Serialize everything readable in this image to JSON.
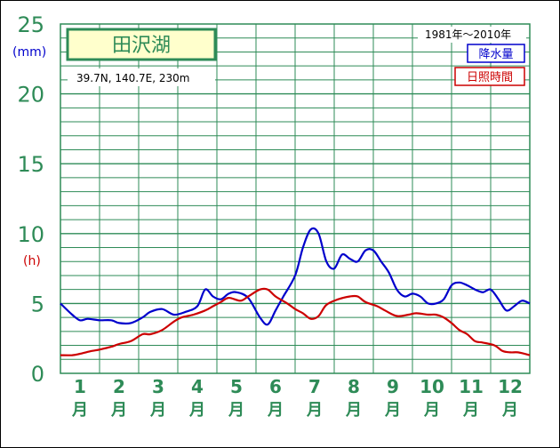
{
  "title": "田沢湖",
  "location": "39.7N,  140.7E,  230m",
  "period": "1981年〜2010年",
  "unit_precip": "(mm)",
  "unit_sunshine": "(h)",
  "legend": {
    "precip": "降水量",
    "sunshine": "日照時間"
  },
  "colors": {
    "grid": "#2e8b57",
    "precip": "#0000cc",
    "sunshine": "#cc0000",
    "title_bg": "#ffffcc"
  },
  "chart_data": {
    "type": "line",
    "categories": [
      "1",
      "2",
      "3",
      "4",
      "5",
      "6",
      "7",
      "8",
      "9",
      "10",
      "11",
      "12"
    ],
    "category_suffix": "月",
    "yticks": [
      "0",
      "5",
      "10",
      "15",
      "20",
      "25"
    ],
    "ylim": [
      0,
      25
    ],
    "grid": true,
    "legend_position": "top-right",
    "series": [
      {
        "name": "降水量",
        "color": "#0000cc",
        "x": [
          0.5,
          0.8,
          1.0,
          1.2,
          1.5,
          1.8,
          2.0,
          2.3,
          2.6,
          2.8,
          3.1,
          3.4,
          3.7,
          4.0,
          4.2,
          4.4,
          4.6,
          4.8,
          5.0,
          5.3,
          5.6,
          5.8,
          6.0,
          6.2,
          6.5,
          6.7,
          6.9,
          7.1,
          7.3,
          7.5,
          7.7,
          7.9,
          8.1,
          8.3,
          8.5,
          8.7,
          8.9,
          9.1,
          9.3,
          9.5,
          9.7,
          9.9,
          10.1,
          10.3,
          10.5,
          10.7,
          10.9,
          11.1,
          11.3,
          11.5,
          11.7,
          11.9,
          12.1,
          12.3,
          12.5
        ],
        "y": [
          5.0,
          4.2,
          3.8,
          3.9,
          3.8,
          3.8,
          3.6,
          3.6,
          4.0,
          4.4,
          4.6,
          4.2,
          4.4,
          4.8,
          6.0,
          5.5,
          5.3,
          5.7,
          5.8,
          5.4,
          4.0,
          3.5,
          4.5,
          5.5,
          7.0,
          9.0,
          10.3,
          10.0,
          8.0,
          7.5,
          8.5,
          8.2,
          8.0,
          8.8,
          8.8,
          8.0,
          7.2,
          6.0,
          5.5,
          5.7,
          5.5,
          5.0,
          5.0,
          5.3,
          6.3,
          6.5,
          6.3,
          6.0,
          5.8,
          6.0,
          5.3,
          4.5,
          4.8,
          5.2,
          5.0
        ]
      },
      {
        "name": "日照時間",
        "color": "#cc0000",
        "x": [
          0.5,
          0.8,
          1.0,
          1.3,
          1.5,
          1.8,
          2.0,
          2.3,
          2.6,
          2.8,
          3.1,
          3.4,
          3.6,
          3.9,
          4.2,
          4.4,
          4.6,
          4.8,
          5.1,
          5.3,
          5.6,
          5.8,
          6.0,
          6.3,
          6.5,
          6.7,
          6.9,
          7.1,
          7.3,
          7.6,
          7.9,
          8.1,
          8.3,
          8.6,
          8.8,
          9.1,
          9.4,
          9.6,
          9.9,
          10.1,
          10.3,
          10.5,
          10.7,
          10.9,
          11.1,
          11.3,
          11.6,
          11.8,
          12.0,
          12.2,
          12.5
        ],
        "y": [
          1.3,
          1.3,
          1.4,
          1.6,
          1.7,
          1.9,
          2.1,
          2.3,
          2.8,
          2.8,
          3.1,
          3.7,
          4.0,
          4.2,
          4.5,
          4.8,
          5.1,
          5.4,
          5.2,
          5.5,
          6.0,
          6.0,
          5.5,
          5.0,
          4.6,
          4.3,
          3.9,
          4.1,
          4.9,
          5.3,
          5.5,
          5.5,
          5.1,
          4.8,
          4.5,
          4.1,
          4.2,
          4.3,
          4.2,
          4.2,
          4.0,
          3.6,
          3.1,
          2.8,
          2.3,
          2.2,
          2.0,
          1.6,
          1.5,
          1.5,
          1.3
        ]
      }
    ]
  }
}
